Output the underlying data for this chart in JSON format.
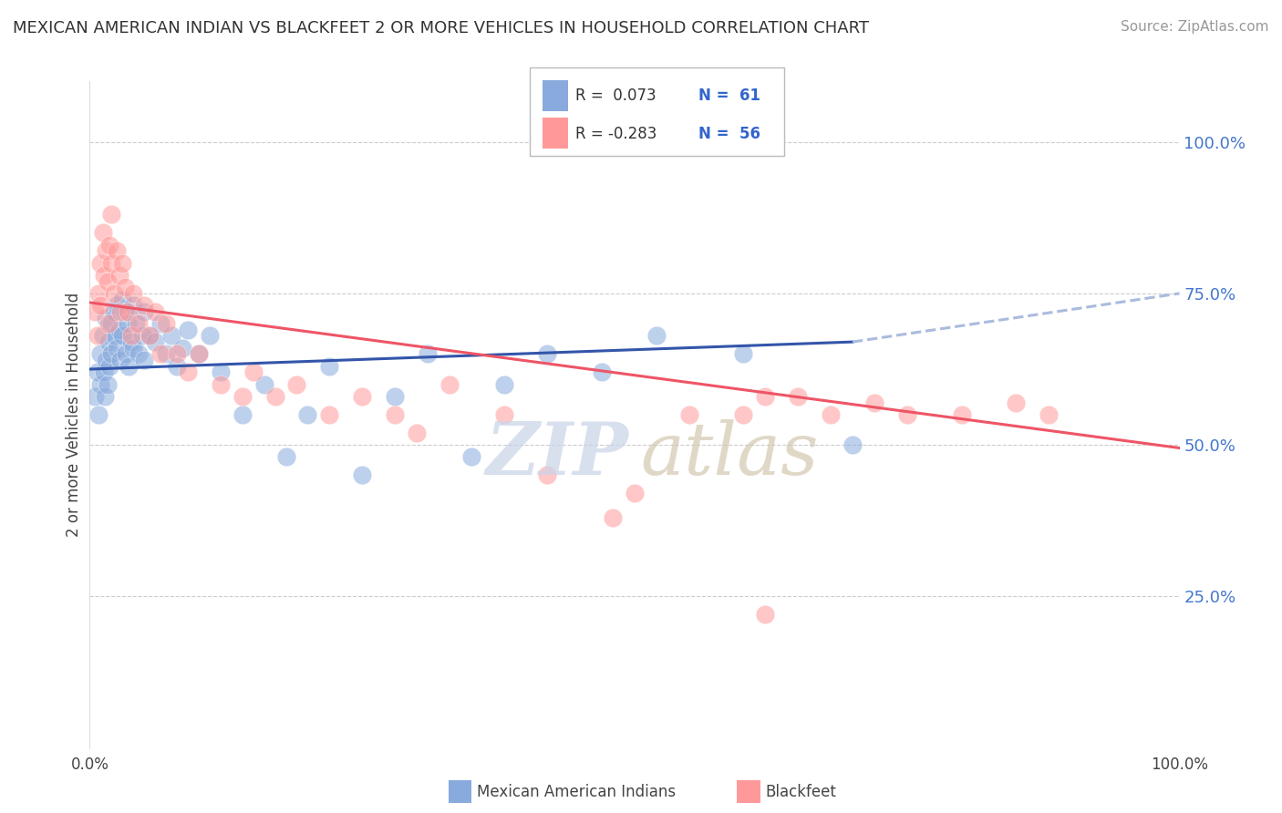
{
  "title": "MEXICAN AMERICAN INDIAN VS BLACKFEET 2 OR MORE VEHICLES IN HOUSEHOLD CORRELATION CHART",
  "source": "Source: ZipAtlas.com",
  "ylabel": "2 or more Vehicles in Household",
  "ytick_labels": [
    "25.0%",
    "50.0%",
    "75.0%",
    "100.0%"
  ],
  "ytick_values": [
    0.25,
    0.5,
    0.75,
    1.0
  ],
  "legend_label1": "Mexican American Indians",
  "legend_label2": "Blackfeet",
  "legend_R1": "R =  0.073",
  "legend_N1": "N =  61",
  "legend_R2": "R = -0.283",
  "legend_N2": "N =  56",
  "color_blue": "#88AADD",
  "color_pink": "#FF9999",
  "color_blue_line": "#3355AA",
  "color_pink_line": "#EE5566",
  "color_dashed": "#AABBDD",
  "blue_x": [
    0.005,
    0.007,
    0.008,
    0.01,
    0.01,
    0.012,
    0.013,
    0.014,
    0.015,
    0.015,
    0.016,
    0.017,
    0.018,
    0.02,
    0.02,
    0.022,
    0.023,
    0.025,
    0.025,
    0.027,
    0.028,
    0.03,
    0.03,
    0.032,
    0.033,
    0.035,
    0.036,
    0.038,
    0.04,
    0.04,
    0.042,
    0.045,
    0.048,
    0.05,
    0.05,
    0.055,
    0.06,
    0.065,
    0.07,
    0.075,
    0.08,
    0.085,
    0.09,
    0.1,
    0.11,
    0.12,
    0.14,
    0.16,
    0.18,
    0.2,
    0.22,
    0.25,
    0.28,
    0.31,
    0.35,
    0.38,
    0.42,
    0.47,
    0.52,
    0.6,
    0.7
  ],
  "blue_y": [
    0.58,
    0.62,
    0.55,
    0.65,
    0.6,
    0.68,
    0.62,
    0.58,
    0.71,
    0.64,
    0.6,
    0.67,
    0.63,
    0.7,
    0.65,
    0.72,
    0.68,
    0.73,
    0.66,
    0.69,
    0.64,
    0.74,
    0.68,
    0.72,
    0.65,
    0.7,
    0.63,
    0.67,
    0.73,
    0.66,
    0.7,
    0.65,
    0.68,
    0.72,
    0.64,
    0.68,
    0.67,
    0.7,
    0.65,
    0.68,
    0.63,
    0.66,
    0.69,
    0.65,
    0.68,
    0.62,
    0.55,
    0.6,
    0.48,
    0.55,
    0.63,
    0.45,
    0.58,
    0.65,
    0.48,
    0.6,
    0.65,
    0.62,
    0.68,
    0.65,
    0.5
  ],
  "pink_x": [
    0.005,
    0.007,
    0.008,
    0.01,
    0.01,
    0.012,
    0.013,
    0.015,
    0.016,
    0.017,
    0.018,
    0.02,
    0.02,
    0.022,
    0.025,
    0.027,
    0.028,
    0.03,
    0.032,
    0.035,
    0.038,
    0.04,
    0.045,
    0.05,
    0.055,
    0.06,
    0.065,
    0.07,
    0.08,
    0.09,
    0.1,
    0.12,
    0.14,
    0.15,
    0.17,
    0.19,
    0.22,
    0.25,
    0.28,
    0.3,
    0.33,
    0.38,
    0.42,
    0.48,
    0.5,
    0.55,
    0.6,
    0.62,
    0.65,
    0.68,
    0.72,
    0.75,
    0.8,
    0.85,
    0.88,
    0.62
  ],
  "pink_y": [
    0.72,
    0.68,
    0.75,
    0.8,
    0.73,
    0.85,
    0.78,
    0.82,
    0.77,
    0.7,
    0.83,
    0.88,
    0.8,
    0.75,
    0.82,
    0.78,
    0.72,
    0.8,
    0.76,
    0.72,
    0.68,
    0.75,
    0.7,
    0.73,
    0.68,
    0.72,
    0.65,
    0.7,
    0.65,
    0.62,
    0.65,
    0.6,
    0.58,
    0.62,
    0.58,
    0.6,
    0.55,
    0.58,
    0.55,
    0.52,
    0.6,
    0.55,
    0.45,
    0.38,
    0.42,
    0.55,
    0.55,
    0.58,
    0.58,
    0.55,
    0.57,
    0.55,
    0.55,
    0.57,
    0.55,
    0.22
  ],
  "blue_line_x0": 0.0,
  "blue_line_x1": 0.7,
  "blue_line_y0": 0.625,
  "blue_line_y1": 0.67,
  "dashed_line_x0": 0.7,
  "dashed_line_x1": 1.0,
  "dashed_line_y0": 0.67,
  "dashed_line_y1": 0.75,
  "pink_line_x0": 0.0,
  "pink_line_x1": 1.0,
  "pink_line_y0": 0.735,
  "pink_line_y1": 0.495,
  "xlim": [
    0.0,
    1.0
  ],
  "ylim": [
    0.0,
    1.1
  ]
}
